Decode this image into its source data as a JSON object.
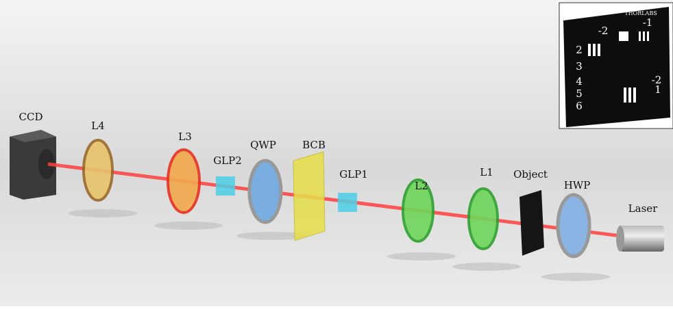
{
  "labels": {
    "ccd": "CCD",
    "l4": "L4",
    "l3": "L3",
    "glp2": "GLP2",
    "qwp": "QWP",
    "bcb": "BCB",
    "glp1": "GLP1",
    "l2": "L2",
    "l1": "L1",
    "object": "Object",
    "hwp": "HWP",
    "laser": "Laser"
  },
  "inset": {
    "brand": "THORLABS",
    "group_labels": [
      "-2",
      "-1",
      "2",
      "3",
      "4",
      "5",
      "6",
      "-2",
      "1"
    ]
  }
}
